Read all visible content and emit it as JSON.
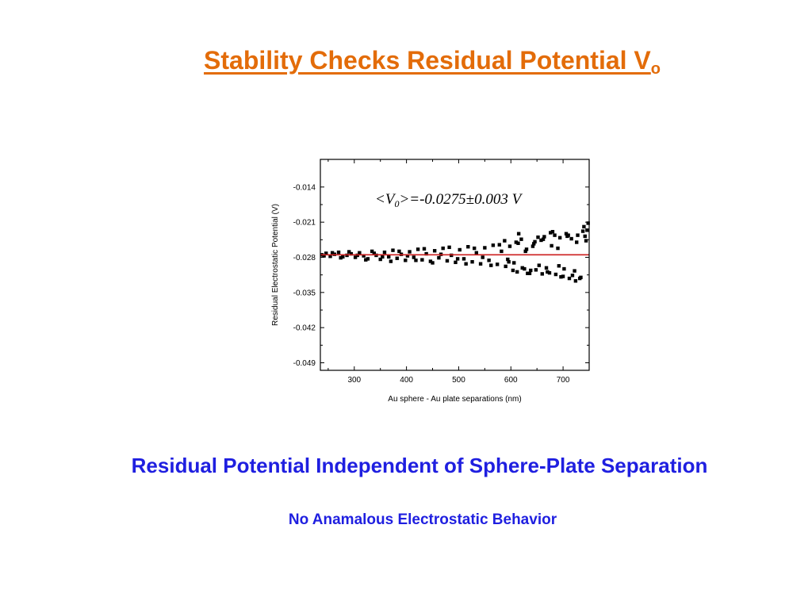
{
  "slide": {
    "title": "Stability Checks Residual Potential V",
    "title_subscript": "o",
    "headline": "Residual Potential Independent of Sphere-Plate Separation",
    "subline": "No Anamalous Electrostatic Behavior"
  },
  "colors": {
    "title": "#E36C09",
    "headline": "#1F1FE0",
    "points": "#000000",
    "fit_line": "#CC1F1F"
  },
  "chart_data": {
    "type": "scatter",
    "xlabel": "Au sphere - Au plate separations (nm)",
    "ylabel": "Residual Electrostatic Potential (V)",
    "xlim": [
      235,
      750
    ],
    "ylim": [
      -0.0505,
      -0.0085
    ],
    "x_ticks": [
      300,
      400,
      500,
      600,
      700
    ],
    "y_ticks": [
      -0.014,
      -0.021,
      -0.028,
      -0.035,
      -0.042,
      -0.049
    ],
    "y_tick_labels": [
      "-0.014",
      "-0.021",
      "-0.028",
      "-0.035",
      "-0.042",
      "-0.049"
    ],
    "x_tick_labels": [
      "300",
      "400",
      "500",
      "600",
      "700"
    ],
    "annotation": {
      "prefix": "<V",
      "subscript": "0",
      "suffix": ">=-0.0275±0.003 V"
    },
    "fit_line": {
      "x": [
        235,
        750
      ],
      "y": [
        -0.0275,
        -0.0275
      ]
    },
    "series": [
      {
        "x": [
          238,
          246,
          254,
          262,
          270,
          278,
          286,
          294,
          302,
          310,
          318,
          326,
          334,
          342,
          350,
          358,
          366,
          374,
          382,
          390,
          398,
          406,
          414,
          422,
          430,
          438,
          446,
          454,
          462,
          470,
          478,
          486,
          494,
          502,
          510,
          518,
          526,
          534,
          542,
          550,
          558,
          566,
          574,
          582,
          590,
          598,
          606,
          614,
          622,
          630,
          638,
          646,
          654,
          662,
          670,
          678,
          686,
          694,
          702,
          710,
          718,
          726,
          734,
          742,
          242,
          258,
          274,
          290,
          306,
          322,
          338,
          354,
          370,
          386,
          402,
          418,
          434,
          450,
          466,
          482,
          498,
          514,
          530,
          546,
          562,
          578,
          594,
          610,
          626,
          642,
          658,
          674,
          690,
          706,
          722,
          738,
          588,
          604,
          620,
          636,
          652,
          668,
          684,
          700,
          716,
          732,
          746,
          596,
          612,
          628,
          644,
          660,
          676,
          692,
          708,
          724,
          740,
          615,
          648,
          680,
          712,
          744,
          632,
          664,
          696,
          728,
          748
        ],
        "y": [
          -0.0275,
          -0.0272,
          -0.0278,
          -0.0274,
          -0.027,
          -0.0279,
          -0.0276,
          -0.0273,
          -0.028,
          -0.0271,
          -0.0277,
          -0.0283,
          -0.0268,
          -0.0276,
          -0.0284,
          -0.027,
          -0.0279,
          -0.0266,
          -0.0282,
          -0.0274,
          -0.0286,
          -0.0269,
          -0.028,
          -0.0264,
          -0.0285,
          -0.0273,
          -0.0288,
          -0.0267,
          -0.0281,
          -0.0262,
          -0.0287,
          -0.0276,
          -0.029,
          -0.0265,
          -0.0283,
          -0.0259,
          -0.0289,
          -0.0271,
          -0.0293,
          -0.0261,
          -0.0286,
          -0.0256,
          -0.0294,
          -0.0268,
          -0.0298,
          -0.0258,
          -0.0291,
          -0.0252,
          -0.0301,
          -0.0264,
          -0.0306,
          -0.0249,
          -0.0296,
          -0.0244,
          -0.0309,
          -0.0257,
          -0.0314,
          -0.0241,
          -0.0303,
          -0.0236,
          -0.0316,
          -0.025,
          -0.032,
          -0.0238,
          -0.0277,
          -0.0271,
          -0.0281,
          -0.0269,
          -0.0276,
          -0.0285,
          -0.0272,
          -0.0279,
          -0.0288,
          -0.0268,
          -0.0277,
          -0.0286,
          -0.0263,
          -0.0291,
          -0.0274,
          -0.026,
          -0.0283,
          -0.0293,
          -0.0262,
          -0.028,
          -0.0296,
          -0.0255,
          -0.0284,
          -0.025,
          -0.0303,
          -0.0258,
          -0.0246,
          -0.0311,
          -0.0262,
          -0.0233,
          -0.0307,
          -0.0228,
          -0.0247,
          -0.0306,
          -0.0244,
          -0.0312,
          -0.024,
          -0.0301,
          -0.0236,
          -0.0318,
          -0.0243,
          -0.0322,
          -0.0226,
          -0.0289,
          -0.0309,
          -0.0268,
          -0.0253,
          -0.0313,
          -0.0231,
          -0.0297,
          -0.0238,
          -0.0327,
          -0.0219,
          -0.0233,
          -0.0305,
          -0.0229,
          -0.0322,
          -0.0247,
          -0.0312,
          -0.0239,
          -0.0319,
          -0.0236,
          -0.0212
        ]
      }
    ]
  }
}
